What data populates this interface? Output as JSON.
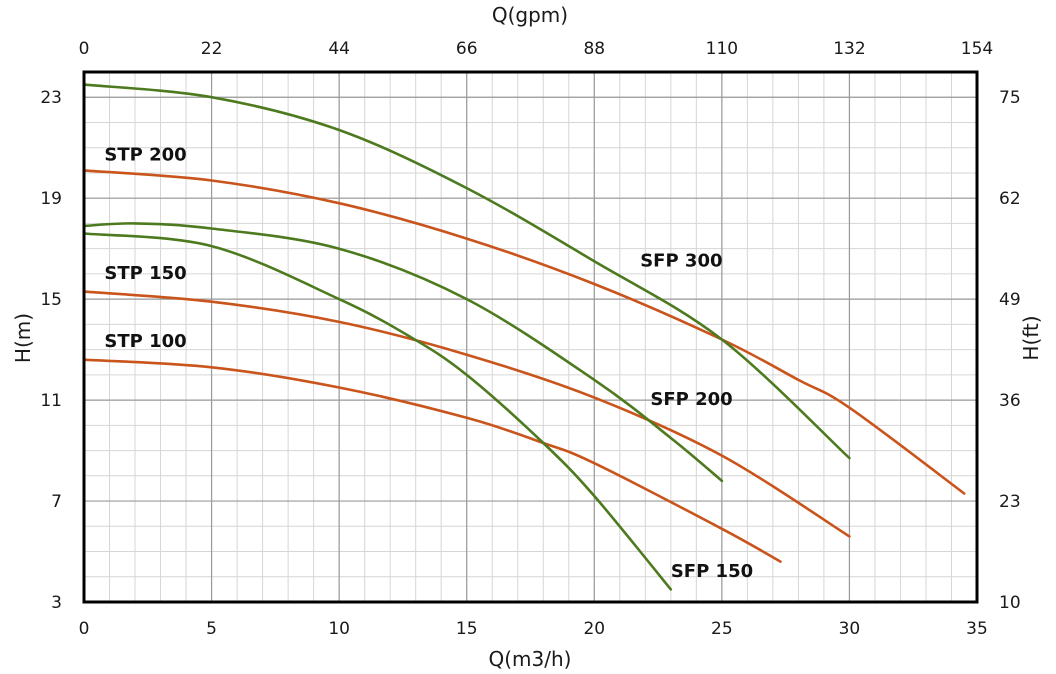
{
  "chart_data": {
    "type": "line",
    "xlabel": "Q(m3/h)",
    "x2label": "Q(gpm)",
    "ylabel": "H(m)",
    "y2label": "H(ft)",
    "xlim": [
      0,
      35
    ],
    "ylim": [
      3,
      24
    ],
    "x_ticks": [
      "0",
      "5",
      "10",
      "15",
      "20",
      "25",
      "30",
      "35"
    ],
    "x_tick_values": [
      0,
      5,
      10,
      15,
      20,
      25,
      30,
      35
    ],
    "x2_ticks": [
      "0",
      "22",
      "44",
      "66",
      "88",
      "110",
      "132",
      "154"
    ],
    "y_ticks": [
      "3",
      "7",
      "11",
      "15",
      "19",
      "23"
    ],
    "y_tick_values": [
      3,
      7,
      11,
      15,
      19,
      23
    ],
    "y2_ticks": [
      "10",
      "23",
      "36",
      "49",
      "62",
      "75"
    ],
    "grid": true,
    "colors": {
      "STP": "#c9541c",
      "SFP": "#4d7a1e",
      "frame": "#000000",
      "grid": "#b5b5b5"
    },
    "series": [
      {
        "name": "STP 200",
        "color": "#c9541c",
        "x": [
          0,
          5,
          10,
          15,
          20,
          25,
          28,
          30,
          34.5
        ],
        "y": [
          20.1,
          19.7,
          18.8,
          17.4,
          15.6,
          13.4,
          11.8,
          10.7,
          7.3
        ]
      },
      {
        "name": "STP 150",
        "color": "#c9541c",
        "x": [
          0,
          5,
          10,
          15,
          20,
          25,
          30
        ],
        "y": [
          15.3,
          14.9,
          14.1,
          12.8,
          11.1,
          8.8,
          5.6
        ]
      },
      {
        "name": "STP 100",
        "color": "#c9541c",
        "x": [
          0,
          5,
          10,
          15,
          18,
          20,
          25,
          27.3
        ],
        "y": [
          12.6,
          12.3,
          11.5,
          10.3,
          9.3,
          8.5,
          5.9,
          4.6
        ]
      },
      {
        "name": "SFP 300",
        "color": "#4d7a1e",
        "x": [
          0,
          5,
          10,
          15,
          20,
          25,
          30
        ],
        "y": [
          23.5,
          23.0,
          21.7,
          19.4,
          16.5,
          13.4,
          8.7
        ]
      },
      {
        "name": "SFP 200",
        "color": "#4d7a1e",
        "x": [
          0,
          2,
          5,
          10,
          15,
          20,
          23,
          25
        ],
        "y": [
          17.9,
          18.0,
          17.8,
          17.0,
          15.0,
          11.8,
          9.5,
          7.8
        ]
      },
      {
        "name": "SFP 150",
        "color": "#4d7a1e",
        "x": [
          0,
          5,
          10,
          12.8,
          15,
          18,
          20,
          23
        ],
        "y": [
          17.6,
          17.1,
          15.0,
          13.5,
          12.0,
          9.3,
          7.2,
          3.5
        ]
      }
    ],
    "labels": [
      {
        "text": "STP 200",
        "x": 0.8,
        "y": 20.5
      },
      {
        "text": "STP 150",
        "x": 0.8,
        "y": 15.8
      },
      {
        "text": "STP 100",
        "x": 0.8,
        "y": 13.1
      },
      {
        "text": "SFP 300",
        "x": 21.8,
        "y": 16.3
      },
      {
        "text": "SFP 200",
        "x": 22.2,
        "y": 10.8
      },
      {
        "text": "SFP 150",
        "x": 23.0,
        "y": 4.0
      }
    ]
  }
}
